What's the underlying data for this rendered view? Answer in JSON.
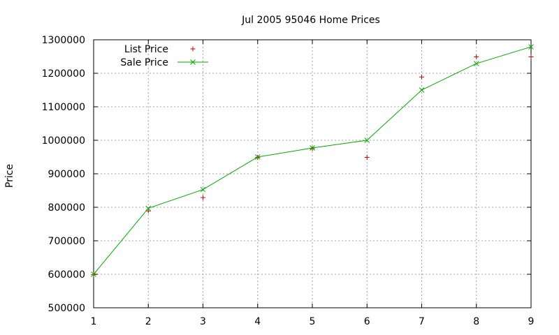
{
  "chart_data": {
    "type": "line",
    "title": "Jul 2005 95046 Home Prices",
    "xlabel": "",
    "ylabel": "Price",
    "xlim": [
      1,
      9
    ],
    "ylim": [
      500000,
      1300000
    ],
    "xticks": [
      "1",
      "2",
      "3",
      "4",
      "5",
      "6",
      "7",
      "8",
      "9"
    ],
    "yticks": [
      "500000",
      "600000",
      "700000",
      "800000",
      "900000",
      "1000000",
      "1100000",
      "1200000",
      "1300000"
    ],
    "grid": true,
    "legend_position": "top-left",
    "series": [
      {
        "name": "List Price",
        "style": "points",
        "marker": "plus",
        "color": "#cc0000",
        "x": [
          1,
          2,
          3,
          4,
          5,
          6,
          7,
          8,
          9
        ],
        "y": [
          599000,
          789000,
          829000,
          949000,
          975000,
          949000,
          1189000,
          1249000,
          1249000
        ]
      },
      {
        "name": "Sale Price",
        "style": "linespoints",
        "marker": "cross",
        "color": "#00aa00",
        "x": [
          1,
          2,
          3,
          4,
          5,
          6,
          7,
          8,
          9
        ],
        "y": [
          600000,
          797000,
          853000,
          950000,
          977000,
          1000000,
          1150000,
          1229000,
          1279000
        ]
      }
    ]
  }
}
